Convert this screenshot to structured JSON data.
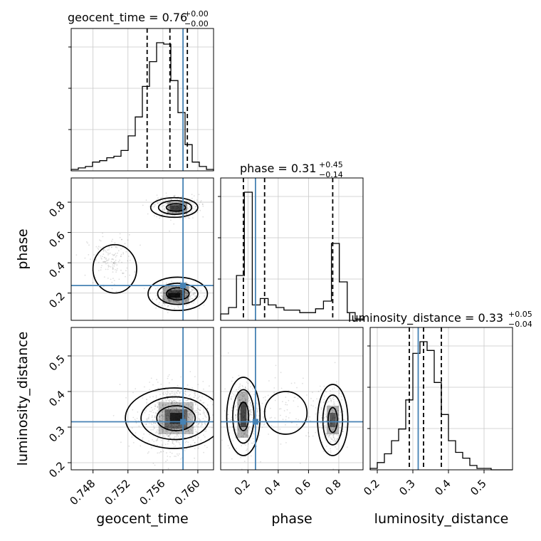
{
  "chart_data": {
    "type": "corner",
    "parameters": [
      "geocent_time",
      "phase",
      "luminosity_distance"
    ],
    "truths": {
      "geocent_time": 0.7583,
      "phase": 0.25,
      "luminosity_distance": 0.315
    },
    "ranges": {
      "geocent_time": [
        0.7455,
        0.7618
      ],
      "phase": [
        0.02,
        0.96
      ],
      "luminosity_distance": [
        0.18,
        0.58
      ]
    },
    "ticks": {
      "geocent_time": [
        0.748,
        0.752,
        0.756,
        0.76
      ],
      "phase": [
        0.2,
        0.4,
        0.6,
        0.8
      ],
      "luminosity_distance": [
        0.2,
        0.3,
        0.4,
        0.5
      ]
    },
    "tick_labels": {
      "geocent_time": [
        "0.748",
        "0.752",
        "0.756",
        "0.760"
      ],
      "phase": [
        "0.2",
        "0.4",
        "0.6",
        "0.8"
      ],
      "luminosity_distance": [
        "0.2",
        "0.3",
        "0.4",
        "0.5"
      ]
    },
    "axis_labels": {
      "geocent_time": "geocent_time",
      "phase": "phase",
      "luminosity_distance": "luminosity_distance"
    },
    "titles": [
      {
        "param": "geocent_time",
        "text": "geocent_time = 0.76",
        "plus": "+0.00",
        "minus": "−0.00"
      },
      {
        "param": "phase",
        "text": "phase = 0.31",
        "plus": "+0.45",
        "minus": "−0.14"
      },
      {
        "param": "luminosity_distance",
        "text": "luminosity_distance = 0.33",
        "plus": "+0.05",
        "minus": "−0.04"
      }
    ],
    "quantiles": {
      "geocent_time": [
        0.7542,
        0.7568,
        0.7588
      ],
      "phase": [
        0.17,
        0.31,
        0.76
      ],
      "luminosity_distance": [
        0.29,
        0.33,
        0.38
      ]
    },
    "hist_counts": {
      "geocent_time": [
        1,
        2,
        3,
        6,
        7,
        9,
        10,
        14,
        24,
        37,
        58,
        75,
        88,
        87,
        62,
        40,
        18,
        6,
        3,
        1
      ],
      "phase": [
        5,
        10,
        35,
        100,
        12,
        17,
        12,
        10,
        8,
        8,
        6,
        6,
        9,
        15,
        60,
        30,
        6,
        1
      ],
      "luminosity_distance": [
        1,
        5,
        11,
        20,
        28,
        48,
        80,
        88,
        82,
        60,
        38,
        20,
        12,
        8,
        3,
        1,
        1,
        0,
        0,
        0
      ]
    },
    "colors": {
      "truth": "#4682b4",
      "contour": "#000000",
      "hist": "#000000",
      "grid": "#c8c8c8",
      "quantile": "#000000"
    },
    "grid": true
  }
}
